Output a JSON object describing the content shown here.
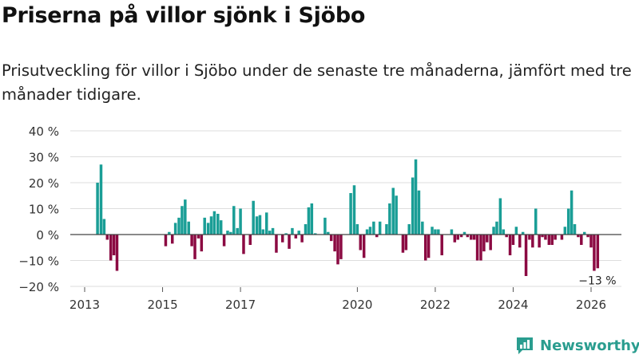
{
  "title": "Priserna på villor sjönk i Sjöbo",
  "subtitle": "Prisutveckling för villor i Sjöbo under de senaste tre månaderna, jämfört med tre månader tidigare.",
  "brand": "Newsworthy",
  "colors": {
    "positive": "#1a9e96",
    "negative": "#8b0a42",
    "brand": "#2a9d8f"
  },
  "chart_data": {
    "type": "bar",
    "ylim": [
      -20,
      40
    ],
    "yticks": [
      -20,
      -10,
      0,
      10,
      20,
      30,
      40
    ],
    "ytick_labels": [
      "−20 %",
      "−10 %",
      "0 %",
      "10 %",
      "20 %",
      "30 %",
      "40 %"
    ],
    "xlim": [
      2013.0,
      2026.7
    ],
    "xticks": [
      2013,
      2015,
      2017,
      2020,
      2022,
      2024,
      2026
    ],
    "xtick_labels": [
      "2013",
      "2015",
      "2017",
      "2020",
      "2022",
      "2024",
      "2026"
    ],
    "annotation": {
      "label": "−13 %",
      "x": 2026.08,
      "value": -13
    },
    "series": [
      {
        "x": 2013.33,
        "v": 20
      },
      {
        "x": 2013.42,
        "v": 27
      },
      {
        "x": 2013.5,
        "v": 6
      },
      {
        "x": 2013.58,
        "v": -2
      },
      {
        "x": 2013.67,
        "v": -10
      },
      {
        "x": 2013.75,
        "v": -8
      },
      {
        "x": 2013.83,
        "v": -14
      },
      {
        "x": 2015.08,
        "v": -4.5
      },
      {
        "x": 2015.17,
        "v": 1
      },
      {
        "x": 2015.25,
        "v": -3.5
      },
      {
        "x": 2015.33,
        "v": 4.5
      },
      {
        "x": 2015.42,
        "v": 6.5
      },
      {
        "x": 2015.5,
        "v": 11
      },
      {
        "x": 2015.58,
        "v": 13.5
      },
      {
        "x": 2015.67,
        "v": 5
      },
      {
        "x": 2015.75,
        "v": -4.5
      },
      {
        "x": 2015.83,
        "v": -9.5
      },
      {
        "x": 2015.92,
        "v": -1.5
      },
      {
        "x": 2016.0,
        "v": -6.5
      },
      {
        "x": 2016.08,
        "v": 6.5
      },
      {
        "x": 2016.17,
        "v": 4.5
      },
      {
        "x": 2016.25,
        "v": 7
      },
      {
        "x": 2016.33,
        "v": 9
      },
      {
        "x": 2016.42,
        "v": 8
      },
      {
        "x": 2016.5,
        "v": 5.5
      },
      {
        "x": 2016.58,
        "v": -4.5
      },
      {
        "x": 2016.67,
        "v": 1.5
      },
      {
        "x": 2016.75,
        "v": 1
      },
      {
        "x": 2016.83,
        "v": 11
      },
      {
        "x": 2016.92,
        "v": 2.5
      },
      {
        "x": 2017.0,
        "v": 10
      },
      {
        "x": 2017.08,
        "v": -7.5
      },
      {
        "x": 2017.25,
        "v": -4
      },
      {
        "x": 2017.33,
        "v": 13
      },
      {
        "x": 2017.42,
        "v": 7
      },
      {
        "x": 2017.5,
        "v": 7.5
      },
      {
        "x": 2017.58,
        "v": 2
      },
      {
        "x": 2017.67,
        "v": 8.5
      },
      {
        "x": 2017.75,
        "v": 1.5
      },
      {
        "x": 2017.83,
        "v": 2.5
      },
      {
        "x": 2017.92,
        "v": -7
      },
      {
        "x": 2018.08,
        "v": -3
      },
      {
        "x": 2018.17,
        "v": 0.5
      },
      {
        "x": 2018.25,
        "v": -5.5
      },
      {
        "x": 2018.33,
        "v": 2.5
      },
      {
        "x": 2018.42,
        "v": -1.5
      },
      {
        "x": 2018.5,
        "v": 1.5
      },
      {
        "x": 2018.58,
        "v": -3
      },
      {
        "x": 2018.67,
        "v": 4
      },
      {
        "x": 2018.75,
        "v": 10.5
      },
      {
        "x": 2018.83,
        "v": 12
      },
      {
        "x": 2018.92,
        "v": 0.5
      },
      {
        "x": 2019.17,
        "v": 6.5
      },
      {
        "x": 2019.25,
        "v": 1
      },
      {
        "x": 2019.33,
        "v": -2.5
      },
      {
        "x": 2019.42,
        "v": -6.5
      },
      {
        "x": 2019.5,
        "v": -11.5
      },
      {
        "x": 2019.58,
        "v": -9.5
      },
      {
        "x": 2019.83,
        "v": 16
      },
      {
        "x": 2019.92,
        "v": 19
      },
      {
        "x": 2020.0,
        "v": 4
      },
      {
        "x": 2020.08,
        "v": -6
      },
      {
        "x": 2020.17,
        "v": -9
      },
      {
        "x": 2020.25,
        "v": 2
      },
      {
        "x": 2020.33,
        "v": 3
      },
      {
        "x": 2020.42,
        "v": 5
      },
      {
        "x": 2020.5,
        "v": -1
      },
      {
        "x": 2020.58,
        "v": 5
      },
      {
        "x": 2020.75,
        "v": 4
      },
      {
        "x": 2020.83,
        "v": 12
      },
      {
        "x": 2020.92,
        "v": 18
      },
      {
        "x": 2021.0,
        "v": 15
      },
      {
        "x": 2021.17,
        "v": -7
      },
      {
        "x": 2021.25,
        "v": -6
      },
      {
        "x": 2021.33,
        "v": 4
      },
      {
        "x": 2021.42,
        "v": 22
      },
      {
        "x": 2021.5,
        "v": 29
      },
      {
        "x": 2021.58,
        "v": 17
      },
      {
        "x": 2021.67,
        "v": 5
      },
      {
        "x": 2021.75,
        "v": -10
      },
      {
        "x": 2021.83,
        "v": -9
      },
      {
        "x": 2021.92,
        "v": 3
      },
      {
        "x": 2022.0,
        "v": 2
      },
      {
        "x": 2022.08,
        "v": 2
      },
      {
        "x": 2022.17,
        "v": -8
      },
      {
        "x": 2022.42,
        "v": 2
      },
      {
        "x": 2022.5,
        "v": -3
      },
      {
        "x": 2022.58,
        "v": -2
      },
      {
        "x": 2022.67,
        "v": -1
      },
      {
        "x": 2022.75,
        "v": 1
      },
      {
        "x": 2022.83,
        "v": -1
      },
      {
        "x": 2022.92,
        "v": -2
      },
      {
        "x": 2023.0,
        "v": -2
      },
      {
        "x": 2023.08,
        "v": -10
      },
      {
        "x": 2023.17,
        "v": -10
      },
      {
        "x": 2023.25,
        "v": -6.5
      },
      {
        "x": 2023.33,
        "v": -3
      },
      {
        "x": 2023.42,
        "v": -6
      },
      {
        "x": 2023.5,
        "v": 3
      },
      {
        "x": 2023.58,
        "v": 5
      },
      {
        "x": 2023.67,
        "v": 14
      },
      {
        "x": 2023.75,
        "v": 2
      },
      {
        "x": 2023.83,
        "v": -1
      },
      {
        "x": 2023.92,
        "v": -8
      },
      {
        "x": 2024.0,
        "v": -4
      },
      {
        "x": 2024.08,
        "v": 3
      },
      {
        "x": 2024.17,
        "v": -5
      },
      {
        "x": 2024.25,
        "v": 1
      },
      {
        "x": 2024.33,
        "v": -16
      },
      {
        "x": 2024.42,
        "v": -2
      },
      {
        "x": 2024.5,
        "v": -5
      },
      {
        "x": 2024.58,
        "v": 10
      },
      {
        "x": 2024.67,
        "v": -5
      },
      {
        "x": 2024.75,
        "v": -1
      },
      {
        "x": 2024.83,
        "v": -2
      },
      {
        "x": 2024.92,
        "v": -4
      },
      {
        "x": 2025.0,
        "v": -4
      },
      {
        "x": 2025.08,
        "v": -2
      },
      {
        "x": 2025.25,
        "v": -2
      },
      {
        "x": 2025.33,
        "v": 3
      },
      {
        "x": 2025.42,
        "v": 10
      },
      {
        "x": 2025.5,
        "v": 17
      },
      {
        "x": 2025.58,
        "v": 4
      },
      {
        "x": 2025.67,
        "v": -1
      },
      {
        "x": 2025.75,
        "v": -4
      },
      {
        "x": 2025.83,
        "v": 1
      },
      {
        "x": 2025.92,
        "v": -1
      },
      {
        "x": 2026.0,
        "v": -5
      },
      {
        "x": 2026.08,
        "v": -14
      },
      {
        "x": 2026.17,
        "v": -13
      }
    ]
  }
}
